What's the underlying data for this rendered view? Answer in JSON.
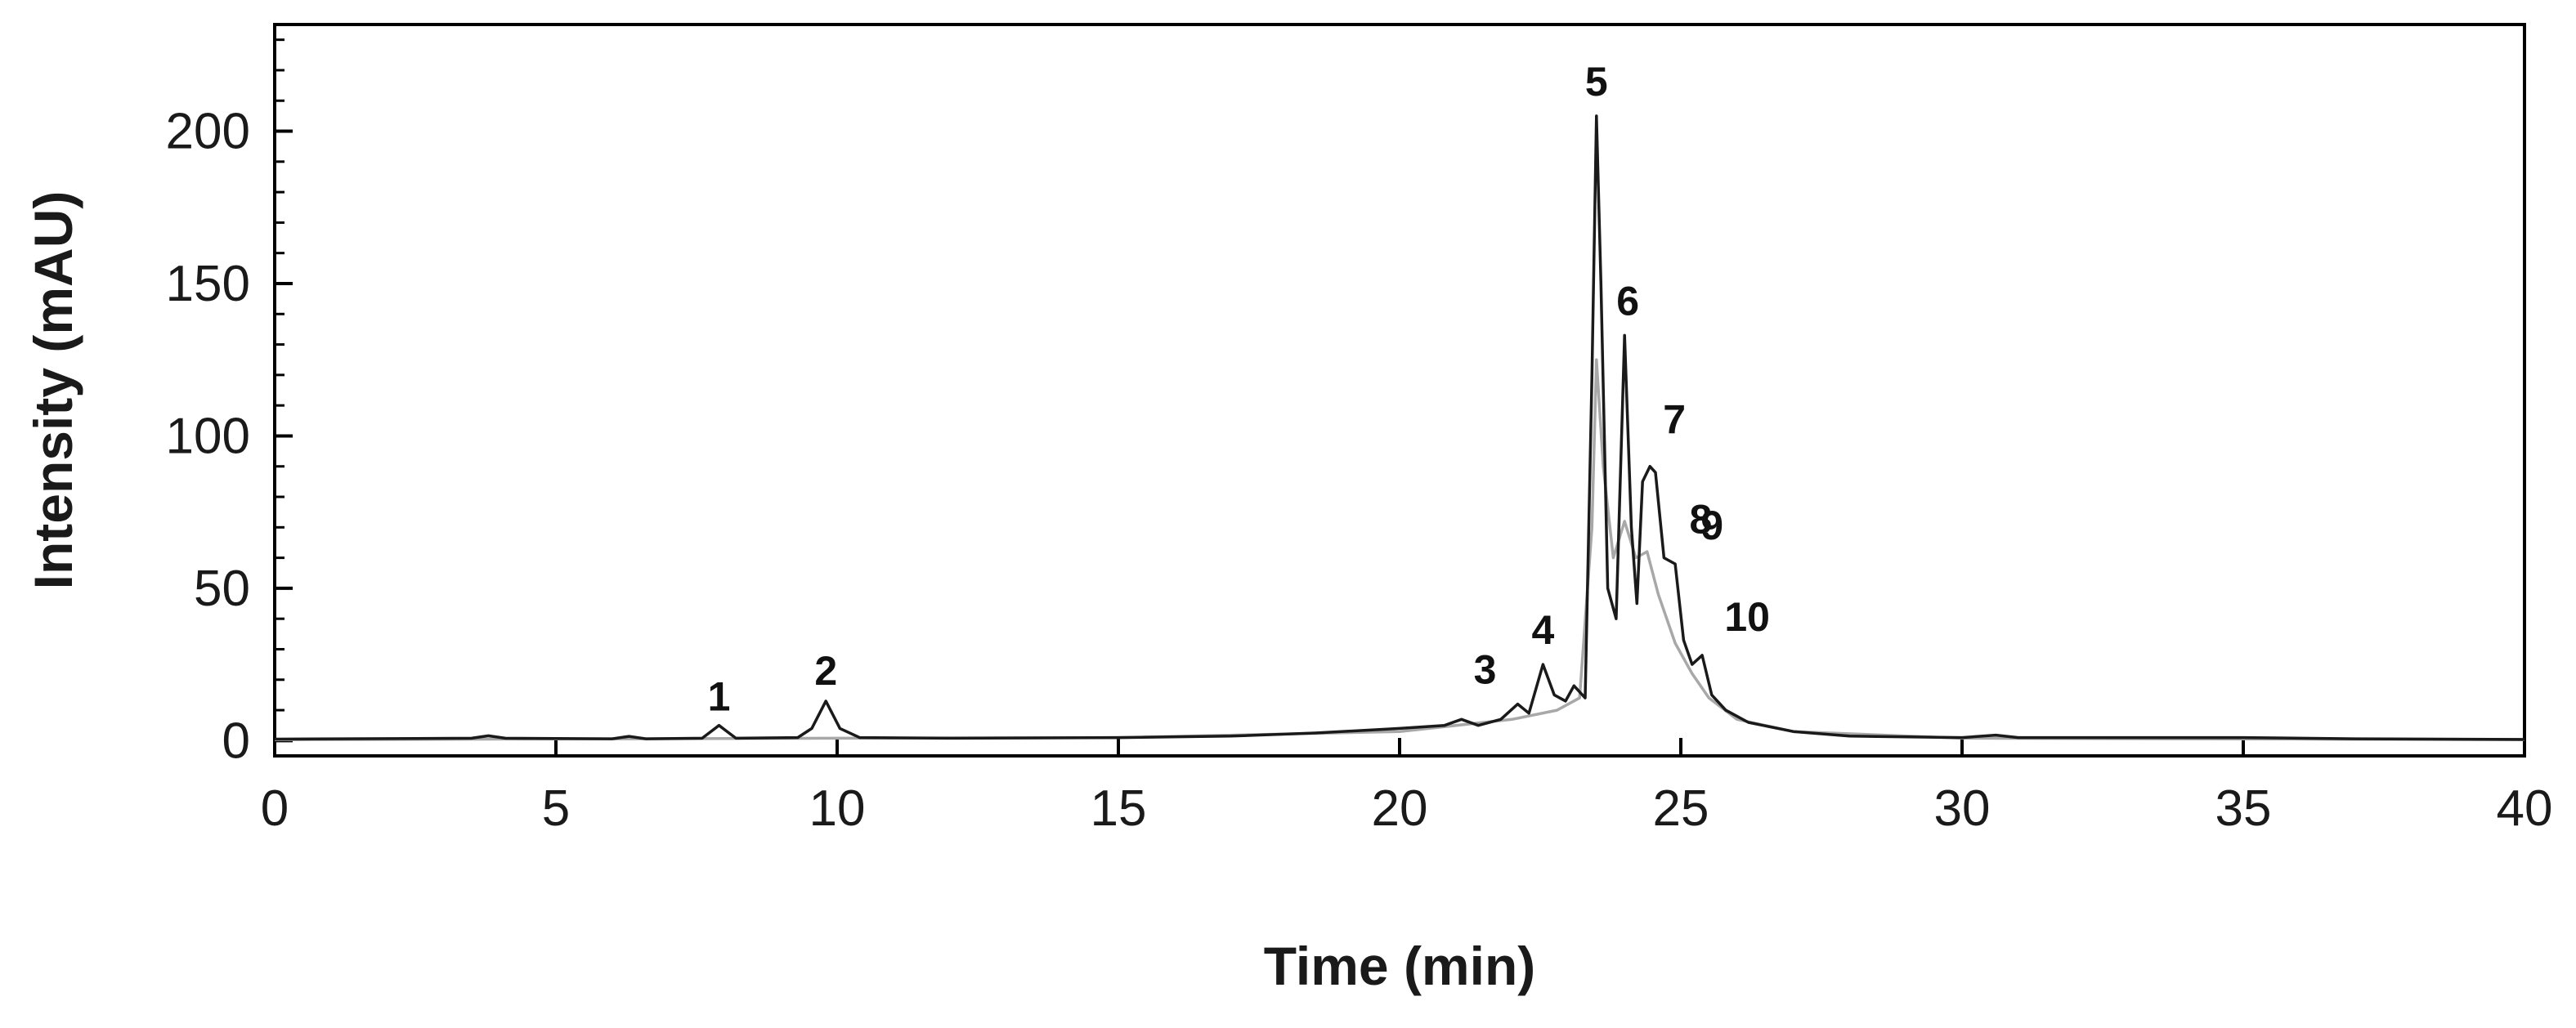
{
  "chart_data": {
    "type": "line",
    "title": "",
    "xlabel": "Time (min)",
    "ylabel": "Intensity (mAU)",
    "xlim": [
      0,
      40
    ],
    "ylim": [
      -5,
      235
    ],
    "x_ticks": [
      0,
      5,
      10,
      15,
      20,
      25,
      30,
      35,
      40
    ],
    "y_ticks": [
      0,
      50,
      100,
      150,
      200
    ],
    "grid": false,
    "legend": "none",
    "colors": {
      "trace_main": "#1a1a1a",
      "trace_secondary": "#a8a8a8",
      "axis": "#000000"
    },
    "series": [
      {
        "values": [
          [
            0,
            0.5
          ],
          [
            3.5,
            0.8
          ],
          [
            3.8,
            1.6
          ],
          [
            4.1,
            0.8
          ],
          [
            6.0,
            0.6
          ],
          [
            6.3,
            1.4
          ],
          [
            6.6,
            0.6
          ],
          [
            7.6,
            0.8
          ],
          [
            7.9,
            5.0
          ],
          [
            8.2,
            0.8
          ],
          [
            9.3,
            1.0
          ],
          [
            9.55,
            4.0
          ],
          [
            9.8,
            13.0
          ],
          [
            10.05,
            4.0
          ],
          [
            10.4,
            1.0
          ],
          [
            12.0,
            0.8
          ],
          [
            15.0,
            1.0
          ],
          [
            17.0,
            1.5
          ],
          [
            18.5,
            2.5
          ],
          [
            20.0,
            4.0
          ],
          [
            20.8,
            5.0
          ],
          [
            21.1,
            7.0
          ],
          [
            21.4,
            5.0
          ],
          [
            21.8,
            7.0
          ],
          [
            22.1,
            12.0
          ],
          [
            22.3,
            9.0
          ],
          [
            22.55,
            25.0
          ],
          [
            22.75,
            15.0
          ],
          [
            22.95,
            13.0
          ],
          [
            23.1,
            18.0
          ],
          [
            23.3,
            14.0
          ],
          [
            23.42,
            120.0
          ],
          [
            23.5,
            205.0
          ],
          [
            23.58,
            150.0
          ],
          [
            23.7,
            50.0
          ],
          [
            23.85,
            40.0
          ],
          [
            24.0,
            133.0
          ],
          [
            24.12,
            70.0
          ],
          [
            24.22,
            45.0
          ],
          [
            24.32,
            85.0
          ],
          [
            24.45,
            90.0
          ],
          [
            24.55,
            88.0
          ],
          [
            24.7,
            60.0
          ],
          [
            24.9,
            58.0
          ],
          [
            25.05,
            33.0
          ],
          [
            25.2,
            25.0
          ],
          [
            25.38,
            28.0
          ],
          [
            25.55,
            15.0
          ],
          [
            25.8,
            10.0
          ],
          [
            26.2,
            6.0
          ],
          [
            27.0,
            3.0
          ],
          [
            28.0,
            1.5
          ],
          [
            30.0,
            1.0
          ],
          [
            30.6,
            1.8
          ],
          [
            31.0,
            1.0
          ],
          [
            35.0,
            1.0
          ],
          [
            37.0,
            0.6
          ],
          [
            40.0,
            0.4
          ]
        ]
      },
      {
        "values": [
          [
            0,
            0.3
          ],
          [
            10.0,
            0.8
          ],
          [
            15.0,
            1.0
          ],
          [
            20.0,
            3.0
          ],
          [
            22.0,
            7.0
          ],
          [
            22.8,
            10.0
          ],
          [
            23.2,
            14.0
          ],
          [
            23.42,
            70.0
          ],
          [
            23.5,
            125.0
          ],
          [
            23.62,
            90.0
          ],
          [
            23.8,
            60.0
          ],
          [
            24.0,
            72.0
          ],
          [
            24.2,
            60.0
          ],
          [
            24.4,
            62.0
          ],
          [
            24.6,
            48.0
          ],
          [
            24.9,
            32.0
          ],
          [
            25.2,
            22.0
          ],
          [
            25.5,
            14.0
          ],
          [
            26.0,
            7.0
          ],
          [
            27.0,
            3.0
          ],
          [
            30.0,
            0.8
          ],
          [
            40.0,
            0.3
          ]
        ]
      }
    ],
    "annotations": [
      {
        "text": "1",
        "x": 7.9,
        "y": 5.0
      },
      {
        "text": "2",
        "x": 9.8,
        "y": 13.0
      },
      {
        "text": "3",
        "x": 22.1,
        "y": 12.0
      },
      {
        "text": "4",
        "x": 22.55,
        "y": 25.0
      },
      {
        "text": "5",
        "x": 23.5,
        "y": 205.0
      },
      {
        "text": "6",
        "x": 24.0,
        "y": 133.0
      },
      {
        "text": "7",
        "x": 24.45,
        "y": 90.0
      },
      {
        "text": "8",
        "x": 24.7,
        "y": 60.0
      },
      {
        "text": "9",
        "x": 24.9,
        "y": 58.0
      },
      {
        "text": "10",
        "x": 25.38,
        "y": 28.0
      }
    ]
  }
}
